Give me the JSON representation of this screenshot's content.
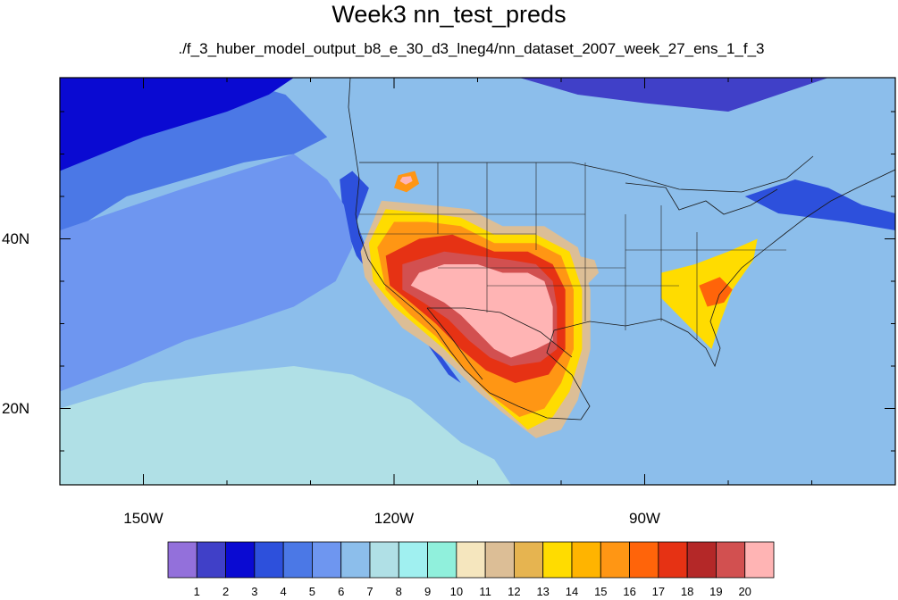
{
  "title": "Week3 nn_test_preds",
  "subtitle": "./f_3_huber_model_output_b8_e_30_d3_lneg4/nn_dataset_2007_week_27_ens_1_f_3",
  "map": {
    "projection": "cylindrical equidistant",
    "lon_range": [
      -160,
      -60
    ],
    "lat_range": [
      11,
      59
    ],
    "lon_ticks": [
      {
        "lon": -150,
        "label": "150W"
      },
      {
        "lon": -120,
        "label": "120W"
      },
      {
        "lon": -90,
        "label": "90W"
      }
    ],
    "lat_ticks": [
      {
        "lat": 40,
        "label": "40N"
      },
      {
        "lat": 20,
        "label": "20N"
      }
    ],
    "background_level": 6
  },
  "colorbar": {
    "labels": [
      "1",
      "2",
      "3",
      "4",
      "5",
      "6",
      "7",
      "8",
      "9",
      "10",
      "11",
      "12",
      "13",
      "14",
      "15",
      "16",
      "17",
      "18",
      "19",
      "20"
    ],
    "colors": [
      "#9370db",
      "#4040c8",
      "#0a0ad2",
      "#2d50dc",
      "#4b78e6",
      "#6e96f0",
      "#8cbeeb",
      "#b0e0e6",
      "#a0f0f0",
      "#90f0dc",
      "#f5e6be",
      "#dcbe96",
      "#e6b450",
      "#ffdc00",
      "#ffb400",
      "#ff9614",
      "#ff640a",
      "#e63214",
      "#b42828",
      "#d25050",
      "#ffb4b4"
    ]
  },
  "chart_data": {
    "type": "heatmap",
    "variable": "nn_test_preds",
    "regions": [
      {
        "level": 20,
        "polygon": [
          [
            -117,
            36
          ],
          [
            -114,
            37
          ],
          [
            -110,
            37
          ],
          [
            -107,
            36
          ],
          [
            -104,
            36
          ],
          [
            -102,
            35
          ],
          [
            -101,
            32
          ],
          [
            -101,
            28
          ],
          [
            -103,
            27
          ],
          [
            -106,
            26
          ],
          [
            -108,
            27
          ],
          [
            -110,
            29
          ],
          [
            -112,
            31
          ],
          [
            -114,
            32.5
          ],
          [
            -116,
            33.5
          ],
          [
            -118,
            34.5
          ]
        ]
      },
      {
        "level": 19,
        "polygon": [
          [
            -119,
            37
          ],
          [
            -114,
            38.5
          ],
          [
            -110,
            38
          ],
          [
            -106,
            37.5
          ],
          [
            -103,
            37
          ],
          [
            -101,
            35
          ],
          [
            -100.5,
            32
          ],
          [
            -100.5,
            27
          ],
          [
            -102.5,
            25.5
          ],
          [
            -106,
            25
          ],
          [
            -108.5,
            26
          ],
          [
            -111,
            28
          ],
          [
            -113.5,
            30.5
          ],
          [
            -116.5,
            32.5
          ],
          [
            -119,
            34
          ]
        ]
      },
      {
        "level": 17,
        "polygon": [
          [
            -121,
            38
          ],
          [
            -117,
            40
          ],
          [
            -113,
            40.5
          ],
          [
            -108,
            38.5
          ],
          [
            -104,
            38.5
          ],
          [
            -101,
            37
          ],
          [
            -99.5,
            34
          ],
          [
            -99.5,
            27
          ],
          [
            -101.5,
            24
          ],
          [
            -105.5,
            23
          ],
          [
            -109,
            24.5
          ],
          [
            -112,
            27
          ],
          [
            -115,
            30
          ],
          [
            -118,
            32.5
          ],
          [
            -120.5,
            34.5
          ]
        ]
      },
      {
        "level": 15,
        "polygon": [
          [
            -122,
            39
          ],
          [
            -120,
            42
          ],
          [
            -116,
            42
          ],
          [
            -112,
            41.5
          ],
          [
            -108,
            39.5
          ],
          [
            -103,
            39.5
          ],
          [
            -100,
            38
          ],
          [
            -98.5,
            34
          ],
          [
            -98.5,
            27
          ],
          [
            -100,
            23
          ],
          [
            -102,
            20
          ],
          [
            -105,
            19
          ],
          [
            -109,
            22
          ],
          [
            -112,
            25
          ],
          [
            -115,
            28.5
          ],
          [
            -118,
            31
          ],
          [
            -121,
            34
          ]
        ]
      },
      {
        "level": 13,
        "polygon": [
          [
            -123,
            39.5
          ],
          [
            -121,
            43.5
          ],
          [
            -116,
            43
          ],
          [
            -112,
            42.5
          ],
          [
            -108,
            40.5
          ],
          [
            -103,
            40.5
          ],
          [
            -99,
            38.5
          ],
          [
            -97.5,
            34
          ],
          [
            -97.5,
            27
          ],
          [
            -99,
            22
          ],
          [
            -101,
            19
          ],
          [
            -104,
            17.5
          ],
          [
            -108,
            21
          ],
          [
            -111,
            24
          ],
          [
            -114,
            27
          ],
          [
            -117,
            29.5
          ],
          [
            -120,
            32
          ],
          [
            -122.5,
            35
          ]
        ]
      },
      {
        "level": 11,
        "polygon": [
          [
            -124,
            38.5
          ],
          [
            -121.5,
            44.5
          ],
          [
            -116,
            44
          ],
          [
            -111,
            43.5
          ],
          [
            -107,
            41.5
          ],
          [
            -102,
            41.5
          ],
          [
            -98,
            39
          ],
          [
            -96.5,
            34
          ],
          [
            -96.5,
            27
          ],
          [
            -98,
            21
          ],
          [
            -100,
            17.5
          ],
          [
            -103,
            16.5
          ],
          [
            -107,
            19.5
          ],
          [
            -110,
            22
          ],
          [
            -113,
            25
          ],
          [
            -116,
            27.5
          ],
          [
            -119,
            29.5
          ],
          [
            -121.5,
            32.5
          ],
          [
            -123.5,
            35.5
          ]
        ]
      },
      {
        "level": 15,
        "polygon": [
          [
            -119.5,
            47.5
          ],
          [
            -117.5,
            48
          ],
          [
            -117,
            46.5
          ],
          [
            -118.5,
            45.5
          ],
          [
            -120,
            46
          ]
        ]
      },
      {
        "level": 20,
        "polygon": [
          [
            -119,
            47.3
          ],
          [
            -118,
            47.4
          ],
          [
            -117.8,
            46.8
          ],
          [
            -118.6,
            46.4
          ],
          [
            -119.3,
            46.8
          ]
        ]
      },
      {
        "level": 13,
        "polygon": [
          [
            -88,
            36
          ],
          [
            -84,
            37
          ],
          [
            -80,
            38.5
          ],
          [
            -76.5,
            40
          ],
          [
            -77,
            37.5
          ],
          [
            -79.5,
            34
          ],
          [
            -81,
            30
          ],
          [
            -82,
            27
          ],
          [
            -84,
            29
          ],
          [
            -86,
            31
          ],
          [
            -88,
            33
          ]
        ]
      },
      {
        "level": 16,
        "polygon": [
          [
            -83.5,
            34.5
          ],
          [
            -81,
            35.5
          ],
          [
            -79.5,
            34
          ],
          [
            -80.5,
            32.5
          ],
          [
            -82.5,
            32
          ]
        ]
      },
      {
        "level": 11,
        "polygon": [
          [
            -100,
            36.5
          ],
          [
            -98,
            38
          ],
          [
            -96,
            37.5
          ],
          [
            -95.5,
            36
          ],
          [
            -97,
            34.5
          ],
          [
            -99,
            35
          ]
        ]
      },
      {
        "level": 4,
        "polygon": [
          [
            -160,
            40
          ],
          [
            -152,
            45
          ],
          [
            -145,
            47
          ],
          [
            -138,
            49
          ],
          [
            -132,
            50
          ],
          [
            -128,
            52
          ],
          [
            -133,
            57
          ],
          [
            -140,
            59
          ],
          [
            -160,
            59
          ]
        ]
      },
      {
        "level": 2,
        "polygon": [
          [
            -160,
            48
          ],
          [
            -150,
            52
          ],
          [
            -140,
            55
          ],
          [
            -135,
            57
          ],
          [
            -132,
            59
          ],
          [
            -160,
            59
          ]
        ]
      },
      {
        "level": 3,
        "polygon": [
          [
            -125,
            48
          ],
          [
            -123,
            46
          ],
          [
            -124.5,
            42
          ],
          [
            -123,
            38
          ],
          [
            -120.5,
            34
          ],
          [
            -118,
            31
          ],
          [
            -115,
            27
          ],
          [
            -112,
            23
          ],
          [
            -113.5,
            24
          ],
          [
            -117,
            29
          ],
          [
            -121,
            33.5
          ],
          [
            -124.5,
            38
          ],
          [
            -126,
            42
          ],
          [
            -126.5,
            47
          ]
        ]
      },
      {
        "level": 5,
        "polygon": [
          [
            -160,
            22
          ],
          [
            -152,
            25
          ],
          [
            -145,
            28
          ],
          [
            -138,
            30
          ],
          [
            -132,
            32
          ],
          [
            -127,
            35
          ],
          [
            -125,
            39
          ],
          [
            -126,
            44
          ],
          [
            -128,
            47
          ],
          [
            -132,
            50
          ],
          [
            -145,
            46
          ],
          [
            -160,
            41
          ]
        ]
      },
      {
        "level": 7,
        "polygon": [
          [
            -160,
            11
          ],
          [
            -160,
            20
          ],
          [
            -150,
            23
          ],
          [
            -142,
            24
          ],
          [
            -132,
            25
          ],
          [
            -125,
            24
          ],
          [
            -118,
            21
          ],
          [
            -112,
            16
          ],
          [
            -108,
            14
          ],
          [
            -106,
            11
          ]
        ]
      },
      {
        "level": 1,
        "polygon": [
          [
            -105,
            59
          ],
          [
            -98,
            57
          ],
          [
            -90,
            56
          ],
          [
            -80,
            55
          ],
          [
            -74,
            57
          ],
          [
            -68,
            59
          ]
        ]
      },
      {
        "level": 3,
        "polygon": [
          [
            -78,
            45
          ],
          [
            -72,
            47
          ],
          [
            -68,
            46
          ],
          [
            -64,
            44
          ],
          [
            -60,
            43
          ],
          [
            -60,
            41
          ],
          [
            -66,
            42
          ],
          [
            -70,
            42.5
          ],
          [
            -74,
            43
          ]
        ]
      }
    ]
  }
}
